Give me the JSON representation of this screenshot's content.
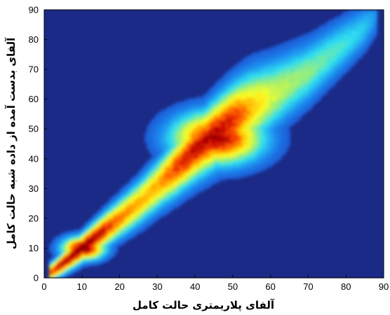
{
  "chart_data": {
    "type": "heatmap",
    "title": "",
    "xlabel": "آلفای پلاریمتری حالت کامل",
    "ylabel": "آلفای بدست آمده از داده شبه حالت کامل",
    "xlim": [
      0,
      90
    ],
    "ylim": [
      0,
      90
    ],
    "x_ticks": [
      "0",
      "10",
      "20",
      "30",
      "40",
      "50",
      "60",
      "70",
      "80",
      "90"
    ],
    "y_ticks": [
      "0",
      "10",
      "20",
      "30",
      "40",
      "50",
      "60",
      "70",
      "80",
      "90"
    ],
    "grid": false,
    "legend": "none",
    "colormap": [
      "#1b2a86",
      "#1f3fc8",
      "#1e8ef0",
      "#2fe0f0",
      "#a6f06a",
      "#ffff20",
      "#ffb000",
      "#ff4a00",
      "#c80000",
      "#7a0000"
    ],
    "background_color": "#1b2a86",
    "density_ridge": {
      "description_points_x": [
        2,
        5,
        10,
        15,
        20,
        25,
        30,
        35,
        40,
        45,
        50,
        55,
        60,
        65,
        70,
        75,
        80,
        85,
        88
      ],
      "center_y": [
        2,
        5,
        10,
        15,
        20,
        25,
        31,
        37,
        43,
        48,
        53,
        57,
        61,
        65,
        69,
        74,
        79,
        84,
        88
      ],
      "intensity": [
        0.75,
        0.9,
        1.0,
        0.88,
        0.7,
        0.62,
        0.62,
        0.78,
        0.88,
        0.9,
        0.82,
        0.6,
        0.45,
        0.38,
        0.34,
        0.3,
        0.26,
        0.2,
        0.12
      ]
    },
    "hotspots": [
      {
        "x": 10,
        "y": 10,
        "peak": "dark red"
      },
      {
        "x": 45,
        "y": 46,
        "peak": "red"
      }
    ]
  }
}
